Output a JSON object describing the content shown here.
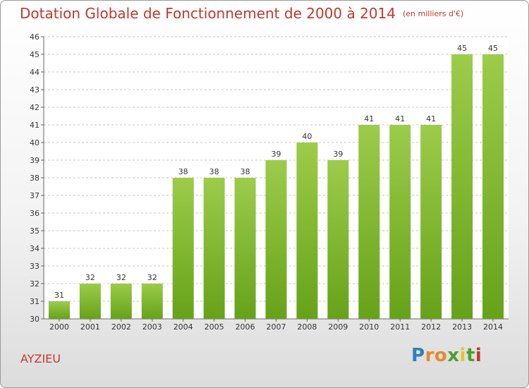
{
  "chart_data": {
    "type": "bar",
    "title": "Dotation Globale de Fonctionnement de 2000 à 2014",
    "subtitle": "(en milliers d'€)",
    "categories": [
      "2000",
      "2001",
      "2002",
      "2003",
      "2004",
      "2005",
      "2006",
      "2007",
      "2008",
      "2009",
      "2010",
      "2011",
      "2012",
      "2013",
      "2014"
    ],
    "values": [
      31,
      32,
      32,
      32,
      38,
      38,
      38,
      39,
      40,
      39,
      41,
      41,
      41,
      45,
      45
    ],
    "ylim": [
      30,
      46
    ],
    "yticks": [
      30,
      31,
      32,
      33,
      34,
      35,
      36,
      37,
      38,
      39,
      40,
      41,
      42,
      43,
      44,
      45,
      46
    ],
    "grid": true,
    "bar_color_top": "#9ccc4a",
    "bar_color_bottom": "#66a219"
  },
  "location_label": "AYZIEU",
  "logo": {
    "letters": [
      "P",
      "r",
      "o",
      "x",
      "i",
      "t",
      "i"
    ],
    "colors": [
      "#2e7fc1",
      "#e8892c",
      "#e8892c",
      "#4aa02c",
      "#e8c22c",
      "#4aa02c",
      "#c0392b"
    ]
  }
}
